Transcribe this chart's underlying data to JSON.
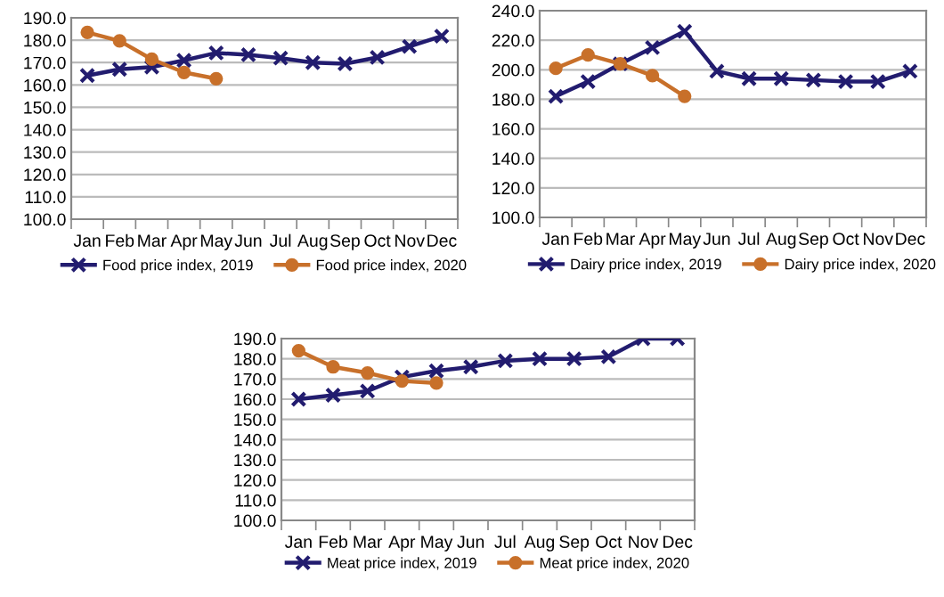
{
  "chart_data": [
    {
      "type": "line",
      "categories": [
        "Jan",
        "Feb",
        "Mar",
        "Apr",
        "May",
        "Jun",
        "Jul",
        "Aug",
        "Sep",
        "Oct",
        "Nov",
        "Dec"
      ],
      "ylim": [
        100,
        190
      ],
      "yticks": [
        {
          "value": 100,
          "label": "100.0"
        },
        {
          "value": 110,
          "label": "110.0"
        },
        {
          "value": 120,
          "label": "120.0"
        },
        {
          "value": 130,
          "label": "130.0"
        },
        {
          "value": 140,
          "label": "140.0"
        },
        {
          "value": 150,
          "label": "150.0"
        },
        {
          "value": 160,
          "label": "160.0"
        },
        {
          "value": 170,
          "label": "170.0"
        },
        {
          "value": 180,
          "label": "180.0"
        },
        {
          "value": 190,
          "label": "190.0"
        }
      ],
      "grid": "y",
      "legend": "bottom",
      "series": [
        {
          "name": "Food price index, 2019",
          "color": "#221c6f",
          "marker": "cross",
          "values": [
            164.2,
            167,
            168,
            171,
            174.3,
            173.5,
            172,
            170,
            169.5,
            172.3,
            177.2,
            181.8
          ]
        },
        {
          "name": "Food price index, 2020",
          "color": "#c8702a",
          "marker": "circle",
          "values": [
            183.5,
            179.7,
            171.5,
            165.6,
            162.8,
            null,
            null,
            null,
            null,
            null,
            null,
            null
          ]
        }
      ]
    },
    {
      "type": "line",
      "categories": [
        "Jan",
        "Feb",
        "Mar",
        "Apr",
        "May",
        "Jun",
        "Jul",
        "Aug",
        "Sep",
        "Oct",
        "Nov",
        "Dec"
      ],
      "ylim": [
        100,
        240
      ],
      "yticks": [
        {
          "value": 100,
          "label": "100.0"
        },
        {
          "value": 120,
          "label": "120.0"
        },
        {
          "value": 140,
          "label": "140.0"
        },
        {
          "value": 160,
          "label": "160.0"
        },
        {
          "value": 180,
          "label": "180.0"
        },
        {
          "value": 200,
          "label": "200.0"
        },
        {
          "value": 220,
          "label": "220.0"
        },
        {
          "value": 240,
          "label": "240.0"
        }
      ],
      "grid": "y",
      "legend": "bottom",
      "series": [
        {
          "name": "Dairy price index, 2019",
          "color": "#221c6f",
          "marker": "cross",
          "values": [
            182,
            192,
            204,
            215,
            226,
            199,
            194,
            194,
            193,
            192,
            192,
            199
          ]
        },
        {
          "name": "Dairy price index, 2020",
          "color": "#c8702a",
          "marker": "circle",
          "values": [
            201,
            210,
            204,
            196,
            182,
            null,
            null,
            null,
            null,
            null,
            null,
            null
          ]
        }
      ]
    },
    {
      "type": "line",
      "categories": [
        "Jan",
        "Feb",
        "Mar",
        "Apr",
        "May",
        "Jun",
        "Jul",
        "Aug",
        "Sep",
        "Oct",
        "Nov",
        "Dec"
      ],
      "ylim": [
        100,
        190
      ],
      "yticks": [
        {
          "value": 100,
          "label": "100.0"
        },
        {
          "value": 110,
          "label": "110.0"
        },
        {
          "value": 120,
          "label": "120.0"
        },
        {
          "value": 130,
          "label": "130.0"
        },
        {
          "value": 140,
          "label": "140.0"
        },
        {
          "value": 150,
          "label": "150.0"
        },
        {
          "value": 160,
          "label": "160.0"
        },
        {
          "value": 170,
          "label": "170.0"
        },
        {
          "value": 180,
          "label": "180.0"
        },
        {
          "value": 190,
          "label": "190.0"
        }
      ],
      "grid": "y",
      "legend": "bottom",
      "series": [
        {
          "name": "Meat price index, 2019",
          "color": "#221c6f",
          "marker": "cross",
          "values": [
            160,
            162,
            164,
            171,
            174,
            176,
            179,
            180,
            180,
            181,
            190,
            190
          ]
        },
        {
          "name": "Meat price index, 2020",
          "color": "#c8702a",
          "marker": "circle",
          "values": [
            184,
            176,
            173,
            169,
            168,
            null,
            null,
            null,
            null,
            null,
            null,
            null
          ]
        }
      ]
    }
  ]
}
